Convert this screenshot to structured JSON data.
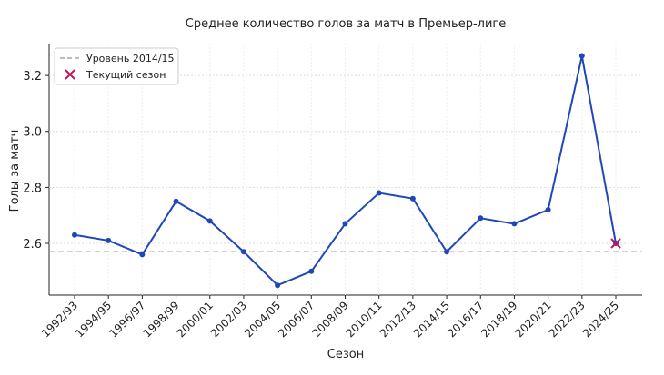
{
  "chart_data": {
    "type": "line",
    "title": "Среднее количество голов за матч в Премьер-лиге",
    "x_label": "Сезон",
    "y_label": "Голы за матч",
    "categories": [
      "1992/93",
      "1994/95",
      "1996/97",
      "1998/99",
      "2000/01",
      "2002/03",
      "2004/05",
      "2006/07",
      "2008/09",
      "2010/11",
      "2012/13",
      "2014/15",
      "2016/17",
      "2018/19",
      "2020/21",
      "2022/23",
      "2024/25"
    ],
    "series": [
      {
        "color": "#1f47b8",
        "values": [
          2.63,
          2.61,
          2.56,
          2.75,
          2.68,
          2.57,
          2.45,
          2.5,
          2.67,
          2.78,
          2.76,
          2.57,
          2.69,
          2.67,
          2.72,
          3.27,
          2.6
        ]
      }
    ],
    "reference_line": {
      "label": "Уровень 2014/15",
      "value": 2.57,
      "color": "#a6a6a6"
    },
    "highlight": {
      "label": "Текущий сезон",
      "category": "2024/25",
      "value": 2.6,
      "color": "#c2185b"
    },
    "ylim": [
      2.415,
      3.314
    ],
    "yticks": [
      2.6,
      2.8,
      {
        "value": 3,
        "label": "3.0"
      },
      3.2
    ],
    "grid": true,
    "legend": "upper left"
  }
}
